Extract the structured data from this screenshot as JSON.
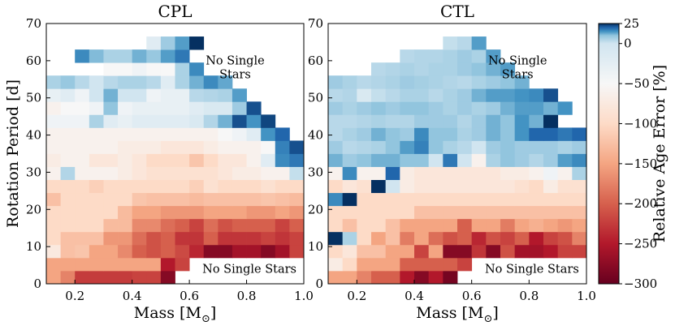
{
  "chart_data": {
    "type": "heatmap",
    "shared": {
      "xlabel": "Mass [M⊙]",
      "ylabel": "Rotation Period [d]",
      "xlim": [
        0.1,
        1.0
      ],
      "ylim": [
        0,
        70
      ],
      "xticks": [
        0.2,
        0.4,
        0.6,
        0.8,
        1.0
      ],
      "xtick_labels": [
        "0.2",
        "0.4",
        "0.6",
        "0.8",
        "1.0"
      ],
      "yticks": [
        0,
        10,
        20,
        30,
        40,
        50,
        60,
        70
      ],
      "ytick_labels": [
        "0",
        "10",
        "20",
        "30",
        "40",
        "50",
        "60",
        "70"
      ],
      "x_bin_width": 0.05,
      "y_bin_width": 3.5,
      "x_bin_starts": [
        0.1,
        0.15,
        0.2,
        0.25,
        0.3,
        0.35,
        0.4,
        0.45,
        0.5,
        0.55,
        0.6,
        0.65,
        0.7,
        0.75,
        0.8,
        0.85,
        0.9,
        0.95
      ],
      "y_bin_starts": [
        0,
        3.5,
        7,
        10.5,
        14,
        17.5,
        21,
        24.5,
        28,
        31.5,
        35,
        38.5,
        42,
        45.5,
        49,
        52.5,
        56,
        59.5,
        63,
        66.5
      ]
    },
    "colorbar": {
      "label": "Relative Age Error [%]",
      "vmin": -300,
      "vmax": 25,
      "ticks": [
        25,
        0,
        -50,
        -100,
        -150,
        -200,
        -250,
        -300
      ],
      "tick_labels": [
        "25",
        "0",
        "−50",
        "−100",
        "−150",
        "−200",
        "−250",
        "−300"
      ],
      "colormap": [
        [
          -300,
          "#67001f"
        ],
        [
          -250,
          "#b2182b"
        ],
        [
          -200,
          "#d6604d"
        ],
        [
          -150,
          "#f4a582"
        ],
        [
          -100,
          "#fddbc7"
        ],
        [
          -50,
          "#f7f7f7"
        ],
        [
          0,
          "#d1e5f0"
        ],
        [
          10,
          "#92c5de"
        ],
        [
          15,
          "#4393c3"
        ],
        [
          20,
          "#2166ac"
        ],
        [
          25,
          "#053061"
        ]
      ]
    },
    "panels": [
      {
        "title": "CPL",
        "annotations": [
          {
            "text": "No Single\nStars",
            "x": 0.76,
            "y": 59
          },
          {
            "text": "No Single Stars",
            "x": 0.81,
            "y": 4
          }
        ],
        "rows": [
          {
            "start": 0.1,
            "values": [
              -150,
              -175,
              -225,
              -225,
              -225,
              -225,
              -220,
              -220,
              -280,
              null,
              null,
              null,
              null,
              null,
              null,
              null,
              null,
              null
            ]
          },
          {
            "start": 0.1,
            "values": [
              -150,
              -150,
              -150,
              -150,
              -150,
              -150,
              -150,
              -150,
              -250,
              -220,
              null,
              null,
              null,
              null,
              null,
              null,
              null,
              null
            ]
          },
          {
            "start": 0.1,
            "values": [
              -75,
              -125,
              -120,
              -150,
              -150,
              -170,
              -200,
              -210,
              -200,
              -215,
              -240,
              -280,
              -280,
              -260,
              -260,
              -280,
              -260,
              -220
            ]
          },
          {
            "start": 0.1,
            "values": [
              -100,
              -125,
              -125,
              -125,
              -160,
              -160,
              -190,
              -210,
              -200,
              -230,
              -230,
              -200,
              -230,
              -230,
              -230,
              -220,
              -230,
              -220
            ]
          },
          {
            "start": 0.1,
            "values": [
              -100,
              -100,
              -100,
              -100,
              -130,
              -130,
              -170,
              -170,
              -190,
              -200,
              -220,
              -190,
              -210,
              -200,
              -200,
              -200,
              -220,
              -200
            ]
          },
          {
            "start": 0.1,
            "values": [
              -100,
              -100,
              -100,
              -100,
              -100,
              -130,
              -150,
              -150,
              -160,
              -160,
              -160,
              -150,
              -150,
              -150,
              -160,
              -160,
              -150,
              -160
            ]
          },
          {
            "start": 0.1,
            "values": [
              -125,
              -100,
              -100,
              -100,
              -100,
              -100,
              -120,
              -125,
              -125,
              -125,
              -130,
              -125,
              -125,
              -125,
              -125,
              -120,
              -125,
              -130
            ]
          },
          {
            "start": 0.1,
            "values": [
              -100,
              -100,
              -100,
              -110,
              -100,
              -100,
              -100,
              -100,
              -100,
              -100,
              -110,
              -90,
              -100,
              -100,
              -100,
              -90,
              -100,
              -100
            ]
          },
          {
            "start": 0.1,
            "values": [
              -60,
              5,
              -60,
              -60,
              -60,
              -70,
              -80,
              -90,
              -90,
              -90,
              -90,
              -90,
              -80,
              -70,
              -70,
              -60,
              -60,
              2
            ]
          },
          {
            "start": 0.1,
            "values": [
              -70,
              -60,
              -60,
              -80,
              -80,
              -70,
              -80,
              -100,
              -100,
              -100,
              -120,
              -100,
              -80,
              -80,
              -60,
              -20,
              16,
              18
            ]
          },
          {
            "start": 0.1,
            "values": [
              -60,
              -60,
              -60,
              -60,
              -60,
              -70,
              -70,
              -70,
              -80,
              -80,
              -80,
              -70,
              -60,
              -60,
              -60,
              -50,
              17,
              22
            ]
          },
          {
            "start": 0.1,
            "values": [
              -60,
              -60,
              -60,
              -60,
              -60,
              -60,
              -60,
              -60,
              -60,
              -60,
              -60,
              -60,
              -50,
              -40,
              -20,
              15,
              20,
              null
            ]
          },
          {
            "start": 0.1,
            "values": [
              -40,
              -40,
              -40,
              6,
              -20,
              -30,
              -20,
              -20,
              -20,
              -20,
              -10,
              5,
              12,
              22,
              15,
              23,
              null,
              null
            ]
          },
          {
            "start": 0.1,
            "values": [
              -60,
              -50,
              -50,
              -40,
              10,
              -40,
              -30,
              -30,
              -30,
              -30,
              -20,
              -10,
              -10,
              8,
              22,
              null,
              null,
              null
            ]
          },
          {
            "start": 0.1,
            "values": [
              -30,
              -20,
              -40,
              0,
              12,
              0,
              0,
              -40,
              -30,
              -30,
              4,
              5,
              6,
              14,
              null,
              null,
              null,
              null
            ]
          },
          {
            "start": 0.1,
            "values": [
              6,
              9,
              4,
              0,
              4,
              6,
              6,
              4,
              -20,
              6,
              12,
              16,
              13,
              null,
              null,
              null,
              null,
              null
            ]
          },
          {
            "start": 0.3,
            "values": [
              -50,
              -50,
              -40,
              -50,
              -50,
              6,
              16,
              null,
              null,
              null
            ]
          },
          {
            "start": 0.2,
            "values": [
              16,
              11,
              6,
              6,
              12,
              9,
              14,
              18,
              null,
              null
            ]
          },
          {
            "start": 0.45,
            "values": [
              -20,
              8,
              14,
              25
            ]
          }
        ]
      },
      {
        "title": "CTL",
        "annotations": [
          {
            "text": "No Single\nStars",
            "x": 0.76,
            "y": 59
          },
          {
            "text": "No Single Stars",
            "x": 0.81,
            "y": 4
          }
        ],
        "rows": [
          {
            "start": 0.1,
            "values": [
              -150,
              -150,
              -175,
              -200,
              -200,
              -250,
              -280,
              -250,
              -290,
              null,
              null,
              null,
              null,
              null,
              null,
              null,
              null,
              null
            ]
          },
          {
            "start": 0.1,
            "values": [
              -70,
              -100,
              -150,
              -150,
              -150,
              -200,
              -200,
              -200,
              -200,
              -220,
              null,
              null,
              null,
              null,
              null,
              null,
              null,
              null
            ]
          },
          {
            "start": 0.1,
            "values": [
              -100,
              -80,
              -125,
              -125,
              -150,
              -150,
              -220,
              -150,
              -280,
              -280,
              -230,
              -280,
              -210,
              -260,
              -260,
              -250,
              -220,
              -220
            ]
          },
          {
            "start": 0.1,
            "values": [
              25,
              6,
              -100,
              -150,
              -125,
              -180,
              -150,
              -190,
              -210,
              -200,
              -240,
              -210,
              -220,
              -200,
              -250,
              -220,
              -210,
              -175
            ]
          },
          {
            "start": 0.1,
            "values": [
              -100,
              -125,
              -100,
              -100,
              -125,
              -150,
              -150,
              -150,
              -150,
              -200,
              -150,
              -150,
              -180,
              -150,
              -140,
              -150,
              -160,
              -150
            ]
          },
          {
            "start": 0.1,
            "values": [
              -100,
              -100,
              -100,
              -100,
              -100,
              -100,
              -125,
              -125,
              -125,
              -125,
              -125,
              -125,
              -125,
              -125,
              -125,
              -125,
              -125,
              -125
            ]
          },
          {
            "start": 0.1,
            "values": [
              16,
              25,
              -100,
              -100,
              -100,
              -100,
              -100,
              -100,
              -100,
              -100,
              -100,
              -100,
              -100,
              -100,
              -100,
              -100,
              -100,
              -100
            ]
          },
          {
            "start": 0.1,
            "values": [
              -100,
              -80,
              -90,
              25,
              0,
              -70,
              -80,
              -80,
              -80,
              -80,
              -80,
              -80,
              -80,
              -90,
              -100,
              -70,
              -90,
              -90
            ]
          },
          {
            "start": 0.1,
            "values": [
              -60,
              16,
              -60,
              -60,
              20,
              -70,
              -80,
              -80,
              -80,
              -80,
              -80,
              -80,
              -70,
              -70,
              -60,
              -40,
              -60,
              6
            ]
          },
          {
            "start": 0.1,
            "values": [
              12,
              8,
              10,
              12,
              12,
              10,
              10,
              0,
              18,
              0,
              -60,
              6,
              10,
              8,
              5,
              8,
              14,
              16
            ]
          },
          {
            "start": 0.1,
            "values": [
              8,
              4,
              5,
              6,
              10,
              14,
              17,
              10,
              6,
              4,
              0,
              8,
              10,
              8,
              8,
              8,
              6,
              8
            ]
          },
          {
            "start": 0.1,
            "values": [
              4,
              6,
              8,
              12,
              10,
              8,
              16,
              10,
              10,
              6,
              8,
              12,
              10,
              15,
              20,
              20,
              18,
              20
            ]
          },
          {
            "start": 0.1,
            "values": [
              4,
              4,
              5,
              6,
              5,
              5,
              8,
              8,
              8,
              5,
              8,
              12,
              10,
              15,
              12,
              25,
              null,
              null
            ]
          },
          {
            "start": 0.1,
            "values": [
              8,
              6,
              8,
              10,
              8,
              10,
              10,
              8,
              6,
              8,
              6,
              8,
              12,
              14,
              14,
              12,
              15,
              null
            ]
          },
          {
            "start": 0.1,
            "values": [
              4,
              5,
              -10,
              2,
              4,
              6,
              6,
              4,
              6,
              8,
              12,
              14,
              14,
              15,
              16,
              22,
              null,
              null
            ]
          },
          {
            "start": 0.1,
            "values": [
              8,
              6,
              4,
              5,
              6,
              8,
              7,
              6,
              5,
              4,
              6,
              8,
              10,
              12,
              null,
              null,
              null,
              null
            ]
          },
          {
            "start": 0.25,
            "values": [
              4,
              5,
              6,
              5,
              6,
              6,
              8,
              10,
              12,
              14,
              null,
              null
            ]
          },
          {
            "start": 0.35,
            "values": [
              4,
              5,
              5,
              6,
              8,
              6,
              14,
              null,
              null,
              null
            ]
          },
          {
            "start": 0.5,
            "values": [
              2,
              4,
              14
            ]
          }
        ]
      }
    ]
  }
}
